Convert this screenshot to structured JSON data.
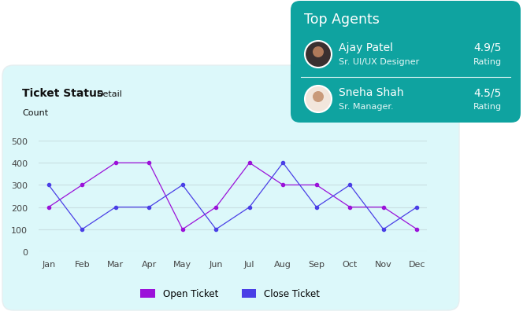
{
  "chart_data": {
    "type": "line",
    "title": "Ticket Status",
    "subtitle": "Detail",
    "ylabel": "Count",
    "categories": [
      "Jan",
      "Feb",
      "Mar",
      "Apr",
      "May",
      "Jun",
      "Jul",
      "Aug",
      "Sep",
      "Oct",
      "Nov",
      "Dec"
    ],
    "series": [
      {
        "name": "Open Ticket",
        "color": "#9b12d9",
        "marker": "o",
        "values": [
          200,
          300,
          400,
          400,
          100,
          200,
          400,
          300,
          300,
          200,
          200,
          100
        ]
      },
      {
        "name": "Close Ticket",
        "color": "#4a3fe6",
        "marker": "o",
        "values": [
          300,
          100,
          200,
          200,
          300,
          100,
          200,
          400,
          200,
          300,
          100,
          200
        ]
      }
    ],
    "ylim": [
      0,
      500
    ],
    "yticks": [
      0,
      100,
      200,
      300,
      400,
      500
    ],
    "grid": true,
    "legend": "lower center"
  },
  "top_agents": {
    "title": "Top Agents",
    "agents": [
      {
        "name": "Ajay Patel",
        "role": "Sr. UI/UX Designer",
        "rating": "4.9/5",
        "rating_label": "Rating"
      },
      {
        "name": "Sneha Shah",
        "role": "Sr. Manager.",
        "rating": "4.5/5",
        "rating_label": "Rating"
      }
    ]
  }
}
